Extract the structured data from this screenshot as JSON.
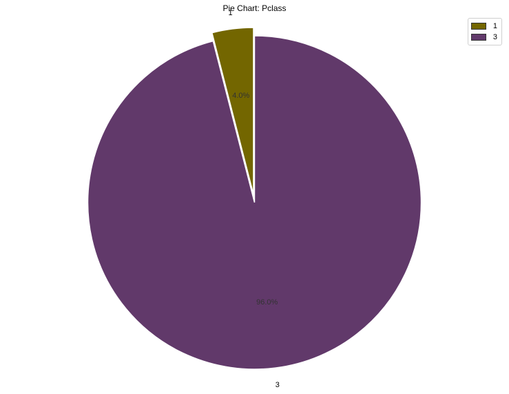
{
  "chart_data": {
    "type": "pie",
    "title": "Pie Chart: Pclass",
    "categories": [
      "1",
      "3"
    ],
    "values": [
      4.0,
      96.0
    ],
    "percent_labels": [
      "4.0%",
      "96.0%"
    ],
    "colors": [
      "#736600",
      "#61396a"
    ],
    "explode": [
      0.05,
      0
    ],
    "start_angle_deg": 90,
    "direction": "counterclockwise",
    "legend": {
      "position": "top-right",
      "entries": [
        "1",
        "3"
      ]
    }
  }
}
